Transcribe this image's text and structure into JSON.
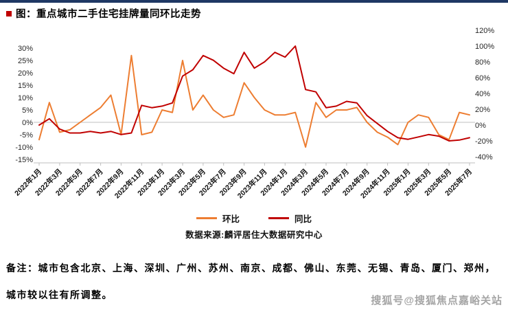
{
  "page": {
    "title": "图：重点城市二手住宅挂牌量同环比走势",
    "source": "数据来源:麟评居住大数据研究中心",
    "note_line1": "备注：城市包含北京、上海、深圳、广州、苏州、南京、成都、佛山、东莞、无锡、青岛、厦门、郑州，",
    "note_line2": "城市较以往有所调整。",
    "watermark": "搜狐号@搜狐焦点嘉峪关站"
  },
  "colors": {
    "mom_line": "#ED7D31",
    "yoy_line": "#C00000",
    "top_bar": "#1F3864",
    "title_bullet": "#C00000",
    "axis": "#BFBFBF"
  },
  "chart_data": {
    "type": "line",
    "title": "重点城市二手住宅挂牌量同环比走势",
    "legend_position": "bottom",
    "grid": "zero-line-only",
    "months": [
      "2022年1月",
      "2022年2月",
      "2022年3月",
      "2022年4月",
      "2022年5月",
      "2022年6月",
      "2022年7月",
      "2022年8月",
      "2022年9月",
      "2022年10月",
      "2022年11月",
      "2022年12月",
      "2023年1月",
      "2023年2月",
      "2023年3月",
      "2023年4月",
      "2023年5月",
      "2023年6月",
      "2023年7月",
      "2023年8月",
      "2023年9月",
      "2023年10月",
      "2023年11月",
      "2023年12月",
      "2024年1月",
      "2024年2月",
      "2024年3月",
      "2024年4月",
      "2024年5月",
      "2024年6月",
      "2024年7月",
      "2024年8月",
      "2024年9月",
      "2024年10月",
      "2024年11月",
      "2024年12月",
      "2025年1月",
      "2025年2月",
      "2025年3月",
      "2025年4月",
      "2025年5月",
      "2025年6月",
      "2025年7月"
    ],
    "x_tick_labels": [
      "2022年1月",
      "2022年3月",
      "2022年5月",
      "2022年7月",
      "2022年9月",
      "2022年11月",
      "2023年1月",
      "2023年3月",
      "2023年5月",
      "2023年7月",
      "2023年9月",
      "2023年11月",
      "2024年1月",
      "2024年3月",
      "2024年5月",
      "2024年7月",
      "2024年9月",
      "2024年11月",
      "2025年1月",
      "2025年3月",
      "2025年5月",
      "2025年7月"
    ],
    "series": [
      {
        "key": "mom",
        "name": "环比",
        "axis": "left",
        "color": "#ED7D31",
        "values": [
          -7,
          8,
          -4,
          -3,
          0,
          3,
          6,
          11,
          -5,
          27,
          -5,
          -4,
          5,
          4,
          25,
          5,
          11,
          5,
          2,
          3,
          16,
          10,
          5,
          3,
          3,
          4,
          -10,
          8,
          2,
          5,
          5,
          6,
          0,
          -4,
          -6,
          -9,
          0,
          3,
          2,
          -5,
          -7,
          4,
          3
        ]
      },
      {
        "key": "yoy",
        "name": "同比",
        "axis": "right",
        "color": "#C00000",
        "values": [
          0,
          8,
          -5,
          -10,
          -10,
          -8,
          -10,
          -8,
          -12,
          -10,
          25,
          22,
          24,
          28,
          62,
          70,
          88,
          82,
          72,
          65,
          92,
          72,
          80,
          92,
          86,
          100,
          45,
          42,
          22,
          24,
          30,
          28,
          12,
          2,
          -8,
          -16,
          -18,
          -15,
          -12,
          -14,
          -20,
          -19,
          -16
        ]
      }
    ],
    "left_axis": {
      "min": -15,
      "max": 30,
      "ticks": [
        "30%",
        "25%",
        "20%",
        "15%",
        "10%",
        "5%",
        "0%",
        "-5%",
        "-10%",
        "-15%"
      ]
    },
    "right_axis": {
      "min": -40,
      "max": 120,
      "ticks": [
        "120%",
        "100%",
        "80%",
        "60%",
        "40%",
        "20%",
        "0%",
        "-20%",
        "-40%"
      ]
    }
  }
}
